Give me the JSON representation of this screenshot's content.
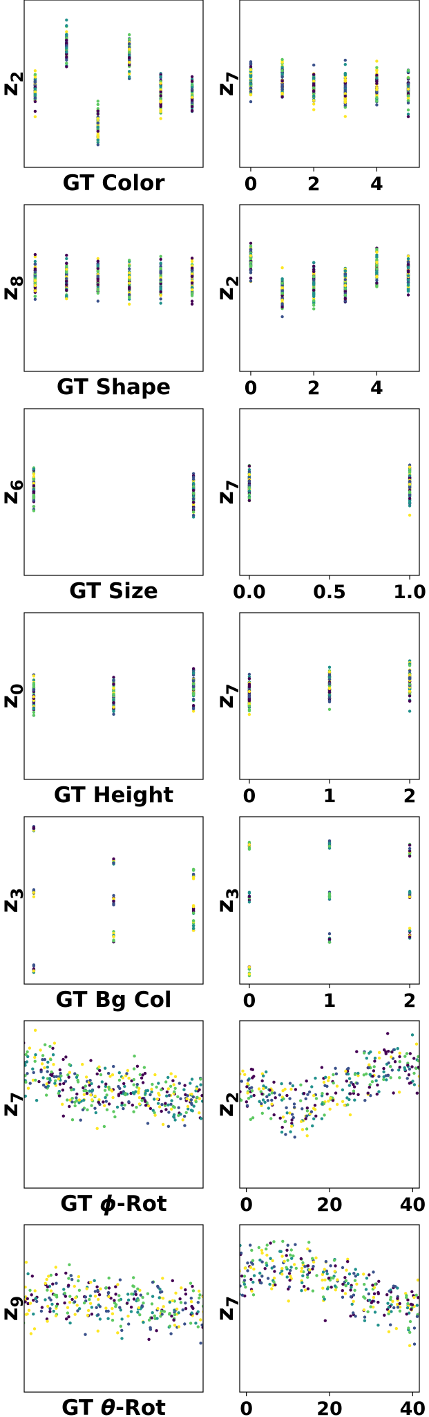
{
  "figure": {
    "title": "",
    "colormap": [
      "#440154",
      "#3b528b",
      "#21918c",
      "#5ec962",
      "#fde725"
    ]
  },
  "chart_data": [
    {
      "row": 0,
      "col": 0,
      "type": "scatter",
      "ylabel_main": "z",
      "ylabel_sub": "2",
      "xlabel_prefix": "GT ",
      "xlabel_sym": "",
      "xlabel_suffix": "Color",
      "xlim": [
        -0.35,
        5.35
      ],
      "ylim": [
        0,
        1
      ],
      "xticks": [],
      "xtick_labels": [],
      "points": [
        [
          0,
          0.46
        ],
        [
          1,
          0.72
        ],
        [
          2,
          0.25
        ],
        [
          3,
          0.65
        ],
        [
          4,
          0.44
        ],
        [
          5,
          0.43
        ]
      ]
    },
    {
      "row": 0,
      "col": 1,
      "type": "scatter",
      "ylabel_main": "z",
      "ylabel_sub": "7",
      "xlabel_prefix": "",
      "xlabel_sym": "",
      "xlabel_suffix": "",
      "xlim": [
        -0.35,
        5.35
      ],
      "ylim": [
        0,
        1
      ],
      "xticks": [
        0,
        2,
        4
      ],
      "xtick_labels": [
        "0",
        "2",
        "4"
      ],
      "points": [
        [
          0,
          0.52
        ],
        [
          1,
          0.52
        ],
        [
          2,
          0.49
        ],
        [
          3,
          0.48
        ],
        [
          4,
          0.48
        ],
        [
          5,
          0.48
        ]
      ]
    },
    {
      "row": 1,
      "col": 0,
      "type": "scatter",
      "ylabel_main": "z",
      "ylabel_sub": "8",
      "xlabel_prefix": "GT ",
      "xlabel_sym": "",
      "xlabel_suffix": "Shape",
      "xlim": [
        -0.35,
        5.35
      ],
      "ylim": [
        0,
        1
      ],
      "xticks": [],
      "xtick_labels": [],
      "points": [
        [
          0,
          0.55
        ],
        [
          1,
          0.55
        ],
        [
          2,
          0.55
        ],
        [
          3,
          0.55
        ],
        [
          4,
          0.55
        ],
        [
          5,
          0.55
        ]
      ]
    },
    {
      "row": 1,
      "col": 1,
      "type": "scatter",
      "ylabel_main": "z",
      "ylabel_sub": "2",
      "xlabel_prefix": "",
      "xlabel_sym": "",
      "xlabel_suffix": "",
      "xlim": [
        -0.35,
        5.35
      ],
      "ylim": [
        0,
        1
      ],
      "xticks": [
        0,
        2,
        4
      ],
      "xtick_labels": [
        "0",
        "2",
        "4"
      ],
      "points": [
        [
          0,
          0.66
        ],
        [
          1,
          0.48
        ],
        [
          2,
          0.52
        ],
        [
          3,
          0.52
        ],
        [
          4,
          0.62
        ],
        [
          5,
          0.58
        ]
      ]
    },
    {
      "row": 2,
      "col": 0,
      "type": "scatter",
      "ylabel_main": "z",
      "ylabel_sub": "6",
      "xlabel_prefix": "GT ",
      "xlabel_sym": "",
      "xlabel_suffix": "Size",
      "xlim": [
        -0.06,
        1.06
      ],
      "ylim": [
        0,
        1
      ],
      "xticks": [],
      "xtick_labels": [],
      "points": [
        [
          0,
          0.52
        ],
        [
          1,
          0.48
        ]
      ]
    },
    {
      "row": 2,
      "col": 1,
      "type": "scatter",
      "ylabel_main": "z",
      "ylabel_sub": "7",
      "xlabel_prefix": "",
      "xlabel_sym": "",
      "xlabel_suffix": "",
      "xlim": [
        -0.06,
        1.06
      ],
      "ylim": [
        0,
        1
      ],
      "xticks": [
        0,
        0.5,
        1
      ],
      "xtick_labels": [
        "0.0",
        "0.5",
        "1.0"
      ],
      "points": [
        [
          0,
          0.55
        ],
        [
          1,
          0.54
        ]
      ]
    },
    {
      "row": 3,
      "col": 0,
      "type": "scatter",
      "ylabel_main": "z",
      "ylabel_sub": "0",
      "xlabel_prefix": "GT ",
      "xlabel_sym": "",
      "xlabel_suffix": "Height",
      "xlim": [
        -0.12,
        2.12
      ],
      "ylim": [
        0,
        1
      ],
      "xticks": [],
      "xtick_labels": [],
      "points": [
        [
          0,
          0.5
        ],
        [
          1,
          0.5
        ],
        [
          2,
          0.55
        ]
      ]
    },
    {
      "row": 3,
      "col": 1,
      "type": "scatter",
      "ylabel_main": "z",
      "ylabel_sub": "7",
      "xlabel_prefix": "",
      "xlabel_sym": "",
      "xlabel_suffix": "",
      "xlim": [
        -0.12,
        2.12
      ],
      "ylim": [
        0,
        1
      ],
      "xticks": [
        0,
        1,
        2
      ],
      "xtick_labels": [
        "0",
        "1",
        "2"
      ],
      "points": [
        [
          0,
          0.52
        ],
        [
          1,
          0.55
        ],
        [
          2,
          0.58
        ]
      ]
    },
    {
      "row": 4,
      "col": 0,
      "type": "scatter",
      "ylabel_main": "z",
      "ylabel_sub": "3",
      "xlabel_prefix": "GT ",
      "xlabel_sym": "",
      "xlabel_suffix": "Bg Col",
      "xlim": [
        -0.12,
        2.12
      ],
      "ylim": [
        0,
        1
      ],
      "xticks": [],
      "xtick_labels": [],
      "points": [
        [
          0,
          0.92
        ],
        [
          0,
          0.55
        ],
        [
          0,
          0.09
        ],
        [
          1,
          0.73
        ],
        [
          1,
          0.5
        ],
        [
          1,
          0.28
        ],
        [
          2,
          0.66
        ],
        [
          2,
          0.45
        ],
        [
          2,
          0.34
        ]
      ]
    },
    {
      "row": 4,
      "col": 1,
      "type": "scatter",
      "ylabel_main": "z",
      "ylabel_sub": "3",
      "xlabel_prefix": "",
      "xlabel_sym": "",
      "xlabel_suffix": "",
      "xlim": [
        -0.12,
        2.12
      ],
      "ylim": [
        0,
        1
      ],
      "xticks": [
        0,
        1,
        2
      ],
      "xtick_labels": [
        "0",
        "1",
        "2"
      ],
      "points": [
        [
          0,
          0.82
        ],
        [
          0,
          0.52
        ],
        [
          0,
          0.09
        ],
        [
          1,
          0.83
        ],
        [
          1,
          0.53
        ],
        [
          1,
          0.27
        ],
        [
          2,
          0.8
        ],
        [
          2,
          0.54
        ],
        [
          2,
          0.3
        ]
      ]
    },
    {
      "row": 5,
      "col": 0,
      "type": "scatter",
      "ylabel_main": "z",
      "ylabel_sub": "7",
      "xlabel_prefix": "GT ",
      "xlabel_sym": "ϕ",
      "xlabel_suffix": "-Rot",
      "xlim": [
        -1,
        41
      ],
      "ylim": [
        0,
        1
      ],
      "xticks": [],
      "xtick_labels": [],
      "points": [
        [
          0,
          0.72
        ],
        [
          4,
          0.72
        ],
        [
          8,
          0.65
        ],
        [
          12,
          0.58
        ],
        [
          16,
          0.56
        ],
        [
          20,
          0.58
        ],
        [
          24,
          0.6
        ],
        [
          28,
          0.58
        ],
        [
          32,
          0.56
        ],
        [
          36,
          0.52
        ],
        [
          40,
          0.55
        ]
      ]
    },
    {
      "row": 5,
      "col": 1,
      "type": "scatter",
      "ylabel_main": "z",
      "ylabel_sub": "2",
      "xlabel_prefix": "",
      "xlabel_sym": "",
      "xlabel_suffix": "",
      "xlim": [
        -1.6,
        41.6
      ],
      "ylim": [
        0,
        1
      ],
      "xticks": [
        0,
        20,
        40
      ],
      "xtick_labels": [
        "0",
        "20",
        "40"
      ],
      "points": [
        [
          0,
          0.62
        ],
        [
          5,
          0.55
        ],
        [
          10,
          0.48
        ],
        [
          15,
          0.5
        ],
        [
          20,
          0.55
        ],
        [
          25,
          0.62
        ],
        [
          30,
          0.68
        ],
        [
          35,
          0.72
        ],
        [
          40,
          0.72
        ]
      ]
    },
    {
      "row": 6,
      "col": 0,
      "type": "scatter",
      "ylabel_main": "z",
      "ylabel_sub": "9",
      "xlabel_prefix": "GT ",
      "xlabel_sym": "θ",
      "xlabel_suffix": "-Rot",
      "xlim": [
        -1,
        41
      ],
      "ylim": [
        0,
        1
      ],
      "xticks": [],
      "xtick_labels": [],
      "points": [
        [
          0,
          0.55
        ],
        [
          5,
          0.58
        ],
        [
          10,
          0.6
        ],
        [
          15,
          0.55
        ],
        [
          20,
          0.52
        ],
        [
          25,
          0.55
        ],
        [
          30,
          0.52
        ],
        [
          35,
          0.48
        ],
        [
          40,
          0.5
        ]
      ]
    },
    {
      "row": 6,
      "col": 1,
      "type": "scatter",
      "ylabel_main": "z",
      "ylabel_sub": "7",
      "xlabel_prefix": "",
      "xlabel_sym": "",
      "xlabel_suffix": "",
      "xlim": [
        -1.6,
        41.6
      ],
      "ylim": [
        0,
        1
      ],
      "xticks": [
        0,
        20,
        40
      ],
      "xtick_labels": [
        "0",
        "20",
        "40"
      ],
      "points": [
        [
          0,
          0.72
        ],
        [
          5,
          0.74
        ],
        [
          10,
          0.75
        ],
        [
          15,
          0.72
        ],
        [
          20,
          0.66
        ],
        [
          25,
          0.6
        ],
        [
          30,
          0.55
        ],
        [
          35,
          0.52
        ],
        [
          40,
          0.5
        ]
      ]
    }
  ]
}
